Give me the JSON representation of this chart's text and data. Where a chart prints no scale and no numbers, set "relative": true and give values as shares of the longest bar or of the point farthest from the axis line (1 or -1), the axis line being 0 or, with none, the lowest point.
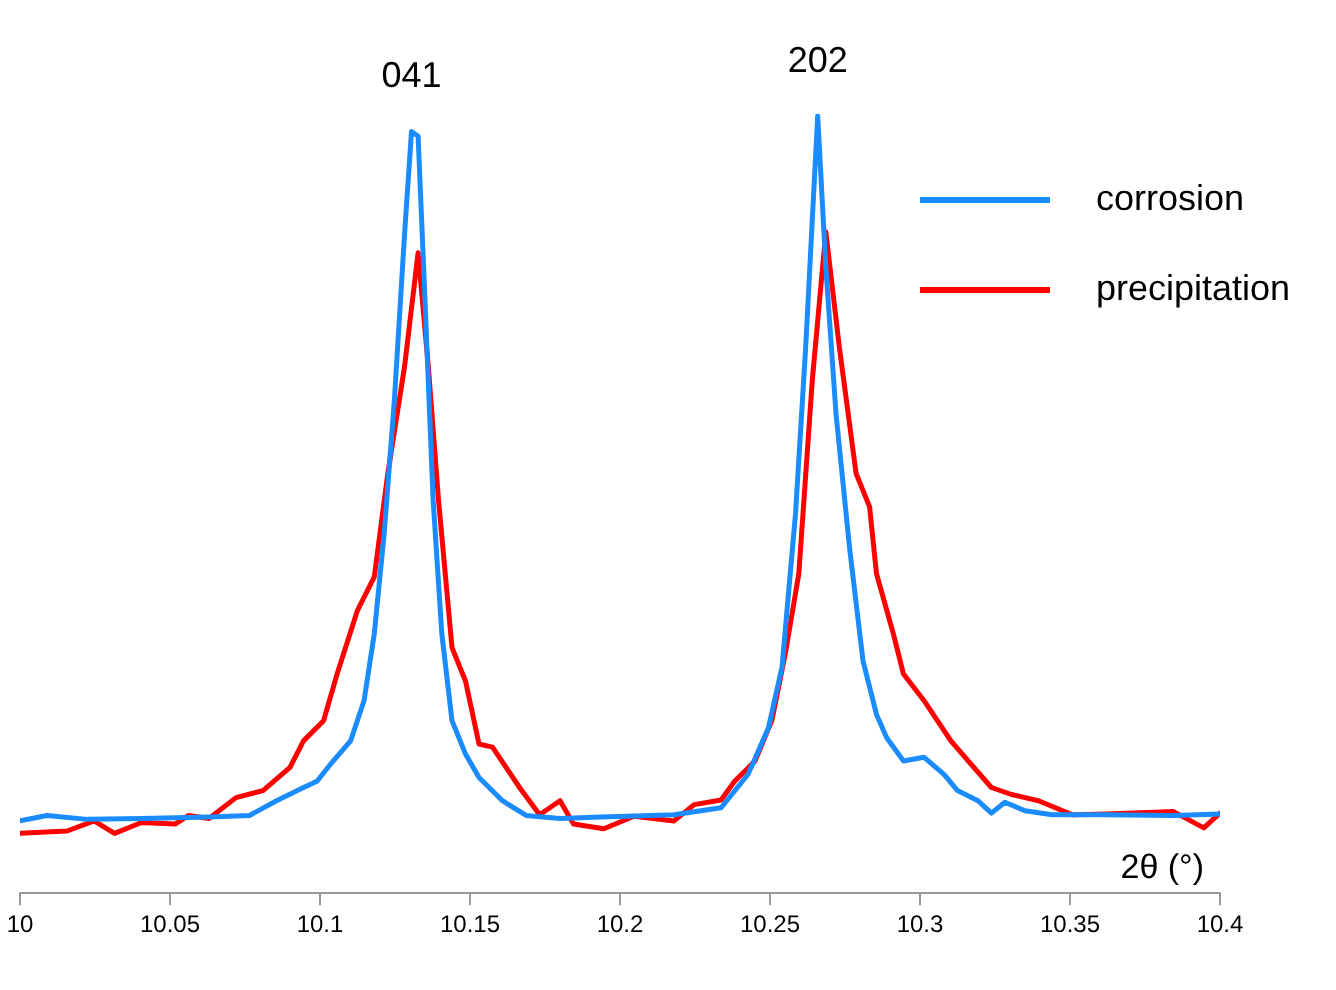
{
  "chart_data": {
    "type": "line",
    "relative": true,
    "xlabel": "2θ (°)",
    "xlim": [
      10,
      10.4
    ],
    "xticks": [
      10,
      10.05,
      10.1,
      10.15,
      10.2,
      10.25,
      10.3,
      10.35,
      10.4
    ],
    "grid": false,
    "legend": "top right",
    "marker": "none",
    "line_style": "solid",
    "annotations": [
      {
        "text": "041",
        "x": 10.1305,
        "y": 0.98
      },
      {
        "text": "202",
        "x": 10.2659,
        "y": 1.0
      }
    ],
    "series": [
      {
        "name": "corrosion",
        "color": "#1a8cff",
        "x": [
          10.0,
          10.009,
          10.0225,
          10.0405,
          10.063,
          10.0765,
          10.0855,
          10.0945,
          10.099,
          10.1035,
          10.1102,
          10.1147,
          10.1181,
          10.1214,
          10.1248,
          10.1282,
          10.1305,
          10.1327,
          10.135,
          10.1377,
          10.1406,
          10.144,
          10.1485,
          10.153,
          10.1608,
          10.1687,
          10.18,
          10.1935,
          10.2025,
          10.218,
          10.2337,
          10.2427,
          10.2495,
          10.254,
          10.2585,
          10.2619,
          10.2659,
          10.2686,
          10.272,
          10.2765,
          10.281,
          10.2855,
          10.2889,
          10.2945,
          10.3013,
          10.308,
          10.3125,
          10.3193,
          10.3238,
          10.3283,
          10.335,
          10.344,
          10.362,
          10.3845,
          10.4
        ],
        "values": [
          0.093,
          0.1,
          0.095,
          0.096,
          0.098,
          0.1,
          0.119,
          0.136,
          0.144,
          0.166,
          0.196,
          0.248,
          0.334,
          0.463,
          0.635,
          0.849,
          0.98,
          0.974,
          0.763,
          0.506,
          0.334,
          0.222,
          0.179,
          0.149,
          0.119,
          0.1,
          0.096,
          0.098,
          0.099,
          0.101,
          0.11,
          0.153,
          0.213,
          0.291,
          0.488,
          0.703,
          1.0,
          0.806,
          0.617,
          0.445,
          0.299,
          0.23,
          0.2,
          0.17,
          0.175,
          0.153,
          0.132,
          0.119,
          0.103,
          0.117,
          0.106,
          0.101,
          0.101,
          0.1,
          0.102
        ]
      },
      {
        "name": "precipitation",
        "color": "#ff0000",
        "x": [
          10.0,
          10.0157,
          10.0247,
          10.0315,
          10.0405,
          10.0517,
          10.0562,
          10.063,
          10.072,
          10.081,
          10.09,
          10.0945,
          10.1012,
          10.1057,
          10.1125,
          10.1181,
          10.1226,
          10.1282,
          10.1327,
          10.1361,
          10.1395,
          10.144,
          10.1485,
          10.153,
          10.1575,
          10.1665,
          10.1732,
          10.18,
          10.1845,
          10.1946,
          10.2047,
          10.209,
          10.218,
          10.2247,
          10.2337,
          10.2382,
          10.245,
          10.2506,
          10.2551,
          10.2596,
          10.2641,
          10.2686,
          10.2731,
          10.2787,
          10.2832,
          10.2855,
          10.2911,
          10.2945,
          10.3013,
          10.3103,
          10.317,
          10.3238,
          10.3305,
          10.3395,
          10.3508,
          10.362,
          10.3845,
          10.3946,
          10.4
        ],
        "values": [
          0.077,
          0.08,
          0.093,
          0.077,
          0.091,
          0.089,
          0.1,
          0.096,
          0.123,
          0.132,
          0.162,
          0.196,
          0.222,
          0.282,
          0.364,
          0.407,
          0.54,
          0.678,
          0.824,
          0.678,
          0.506,
          0.316,
          0.273,
          0.192,
          0.188,
          0.136,
          0.101,
          0.119,
          0.089,
          0.083,
          0.099,
          0.097,
          0.093,
          0.114,
          0.12,
          0.144,
          0.17,
          0.222,
          0.308,
          0.411,
          0.66,
          0.851,
          0.703,
          0.54,
          0.497,
          0.411,
          0.334,
          0.282,
          0.248,
          0.196,
          0.166,
          0.136,
          0.127,
          0.119,
          0.101,
          0.102,
          0.105,
          0.084,
          0.103
        ]
      }
    ]
  }
}
